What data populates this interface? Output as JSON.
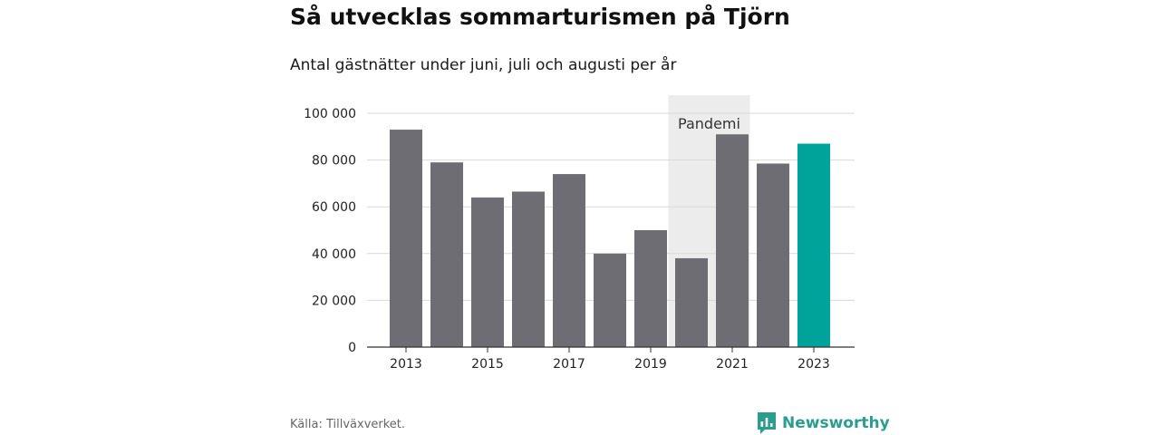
{
  "header": {
    "title": "Så utvecklas sommarturismen på Tjörn",
    "subtitle": "Antal gästnätter under juni, juli och augusti per år"
  },
  "footer": {
    "source": "Källa: Tillväxverket.",
    "brand": "Newsworthy"
  },
  "colors": {
    "bar": "#6e6d74",
    "highlight": "#00a39a",
    "band": "#ececec",
    "grid": "#d9d9d9",
    "axis": "#333333",
    "brand": "#2a9d8f"
  },
  "icons": {
    "brand_logo": "bar-chart-speech-bubble-icon"
  },
  "chart_data": {
    "type": "bar",
    "categories": [
      2013,
      2014,
      2015,
      2016,
      2017,
      2018,
      2019,
      2020,
      2021,
      2022,
      2023
    ],
    "values": [
      93000,
      79000,
      64000,
      66500,
      74000,
      40000,
      50000,
      38000,
      91000,
      78500,
      87000
    ],
    "highlight_category": 2023,
    "ylim": [
      0,
      100000
    ],
    "yticks": [
      0,
      20000,
      40000,
      60000,
      80000,
      100000
    ],
    "ytick_labels": [
      "0",
      "20 000",
      "40 000",
      "60 000",
      "80 000",
      "100 000"
    ],
    "xtick_labels": [
      "2013",
      "2015",
      "2017",
      "2019",
      "2021",
      "2023"
    ],
    "xlabel": "",
    "ylabel": "",
    "grid": true,
    "legend": "none",
    "annotations": [
      {
        "label": "Pandemi",
        "from": 2020,
        "to": 2021,
        "type": "shaded-band"
      }
    ]
  }
}
